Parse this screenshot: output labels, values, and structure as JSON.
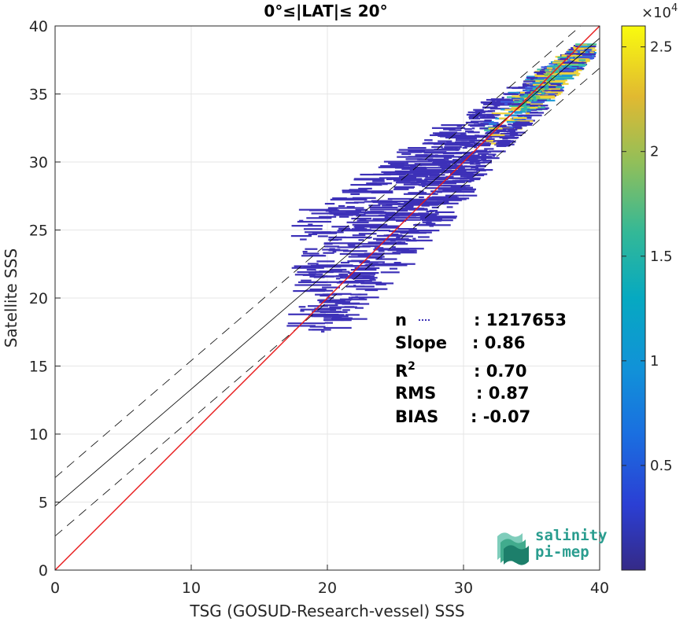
{
  "chart_data": {
    "type": "heatmap",
    "title": "0°≤|LAT|≤ 20°",
    "xlabel": "TSG (GOSUD-Research-vessel) SSS",
    "ylabel": "Satellite SSS",
    "xlim": [
      0,
      40
    ],
    "ylim": [
      0,
      40
    ],
    "xticks": [
      "0",
      "10",
      "20",
      "30",
      "40"
    ],
    "yticks": [
      "0",
      "5",
      "10",
      "15",
      "20",
      "25",
      "30",
      "35",
      "40"
    ],
    "grid": true,
    "lines": {
      "identity": {
        "slope": 1.0,
        "intercept": 0.0,
        "color": "#e8191b"
      },
      "fit": {
        "slope": 0.86,
        "intercept": 4.7,
        "color": "#000000"
      },
      "fit_upper": {
        "slope": 0.86,
        "intercept": 6.8,
        "dashed": true
      },
      "fit_lower": {
        "slope": 0.86,
        "intercept": 2.5,
        "dashed": true
      }
    },
    "stats": [
      {
        "label": "n",
        "value": ": 1217653"
      },
      {
        "label": "Slope",
        "value": ": 0.86"
      },
      {
        "label": "R",
        "sup": "2",
        "value": ": 0.70"
      },
      {
        "label": "RMS",
        "value": ": 0.87"
      },
      {
        "label": "BIAS",
        "value": ": -0.07"
      }
    ],
    "colorbar": {
      "colormap": "parula",
      "range": [
        0,
        26000
      ],
      "ticks": [
        "0.5",
        "1",
        "1.5",
        "2",
        "2.5"
      ],
      "multiplier": "×10",
      "exponent": "4"
    }
  },
  "logo": {
    "line1": "salinity",
    "line2": "pi-mep"
  }
}
